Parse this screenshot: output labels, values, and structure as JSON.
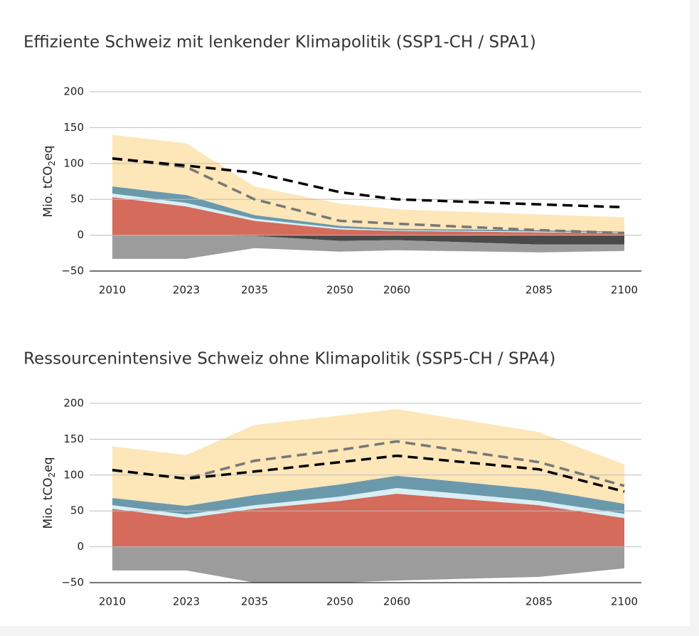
{
  "chart_data": [
    {
      "type": "area",
      "title": "Effiziente Schweiz mit lenkender Klimapolitik (SSP1-CH / SPA1)",
      "y_label": {
        "main": "Mio. tCO",
        "sub": "2",
        "end": "eq"
      },
      "x": [
        2010,
        2023,
        2035,
        2050,
        2060,
        2085,
        2100
      ],
      "xticks": [
        2010,
        2023,
        2035,
        2050,
        2060,
        2085,
        2100
      ],
      "xlim": [
        2006,
        2103
      ],
      "ylim": [
        -50,
        200
      ],
      "yticks": [
        {
          "value": -50,
          "label": "−50"
        },
        0,
        50,
        100,
        150,
        200
      ],
      "grid": true,
      "series": [
        {
          "color": "#d46b5b",
          "values": [
            53,
            40,
            20,
            8,
            6,
            4,
            3
          ]
        },
        {
          "color": "#d8eff4",
          "values": [
            5,
            5,
            3,
            2,
            1,
            1,
            1
          ]
        },
        {
          "color": "#6b99ac",
          "values": [
            10,
            11,
            5,
            3,
            2,
            2,
            1
          ]
        },
        {
          "color": "#fde6b8",
          "values": [
            72,
            72,
            40,
            31,
            27,
            22,
            20
          ]
        },
        {
          "color": "#4a4a4a",
          "values": [
            0,
            0,
            -1,
            -8,
            -7,
            -13,
            -13
          ]
        },
        {
          "color": "#9c9c9c",
          "values": [
            -33,
            -33,
            -17,
            -15,
            -14,
            -11,
            -9
          ]
        }
      ],
      "lines": [
        {
          "color": "#777777",
          "values": [
            107,
            95,
            50,
            20,
            16,
            7,
            3
          ]
        },
        {
          "color": "#000000",
          "values": [
            107,
            97,
            87,
            60,
            50,
            43,
            39
          ]
        }
      ]
    },
    {
      "type": "area",
      "title": "Ressourcenintensive Schweiz ohne Klimapolitik (SSP5-CH / SPA4)",
      "y_label": {
        "main": "Mio. tCO",
        "sub": "2",
        "end": "eq"
      },
      "x": [
        2010,
        2023,
        2035,
        2050,
        2060,
        2085,
        2100
      ],
      "xticks": [
        2010,
        2023,
        2035,
        2050,
        2060,
        2085,
        2100
      ],
      "xlim": [
        2006,
        2103
      ],
      "ylim": [
        -50,
        200
      ],
      "yticks": [
        {
          "value": -50,
          "label": "−50"
        },
        0,
        50,
        100,
        150,
        200
      ],
      "grid": true,
      "series": [
        {
          "color": "#d46b5b",
          "values": [
            53,
            40,
            53,
            64,
            74,
            58,
            40
          ]
        },
        {
          "color": "#d8eff4",
          "values": [
            5,
            5,
            5,
            6,
            8,
            6,
            6
          ]
        },
        {
          "color": "#6b99ac",
          "values": [
            10,
            12,
            14,
            17,
            17,
            16,
            14
          ]
        },
        {
          "color": "#fde6b8",
          "values": [
            72,
            71,
            98,
            96,
            93,
            80,
            55
          ]
        },
        {
          "color": "#9c9c9c",
          "values": [
            -33,
            -33,
            -50,
            -50,
            -47,
            -42,
            -30
          ]
        }
      ],
      "lines": [
        {
          "color": "#777777",
          "values": [
            107,
            95,
            120,
            135,
            147,
            118,
            85
          ]
        },
        {
          "color": "#000000",
          "values": [
            107,
            95,
            105,
            118,
            127,
            108,
            77
          ]
        }
      ]
    }
  ]
}
